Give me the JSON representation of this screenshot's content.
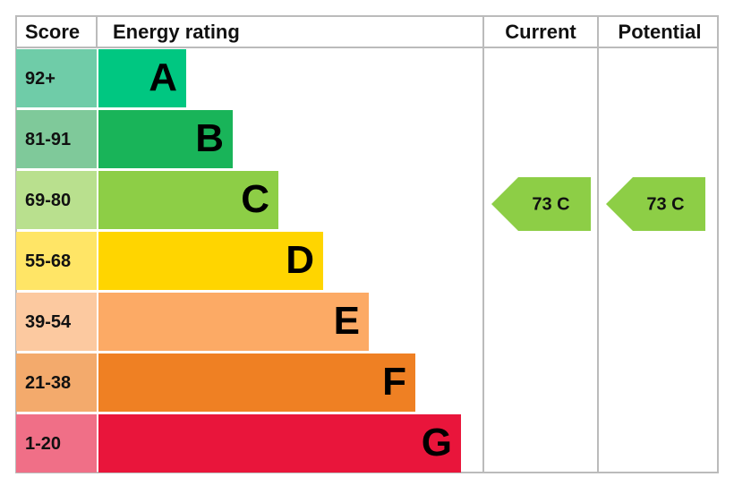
{
  "header": {
    "score": "Score",
    "energy_rating": "Energy rating",
    "current": "Current",
    "potential": "Potential"
  },
  "rows": [
    {
      "score": "92+",
      "letter": "A",
      "color": "#00c781",
      "score_color": "#6fcca8"
    },
    {
      "score": "81-91",
      "letter": "B",
      "color": "#19b459",
      "score_color": "#7fc99a"
    },
    {
      "score": "69-80",
      "letter": "C",
      "color": "#8dce46",
      "score_color": "#b9e08e"
    },
    {
      "score": "55-68",
      "letter": "D",
      "color": "#ffd500",
      "score_color": "#ffe566"
    },
    {
      "score": "39-54",
      "letter": "E",
      "color": "#fcaa65",
      "score_color": "#fcc9a0"
    },
    {
      "score": "21-38",
      "letter": "F",
      "color": "#ef8023",
      "score_color": "#f3aa6c"
    },
    {
      "score": "1-20",
      "letter": "G",
      "color": "#e9153b",
      "score_color": "#f06f87"
    }
  ],
  "current": {
    "label": "73 C",
    "color": "#8dce46"
  },
  "potential": {
    "label": "73 C",
    "color": "#8dce46"
  }
}
